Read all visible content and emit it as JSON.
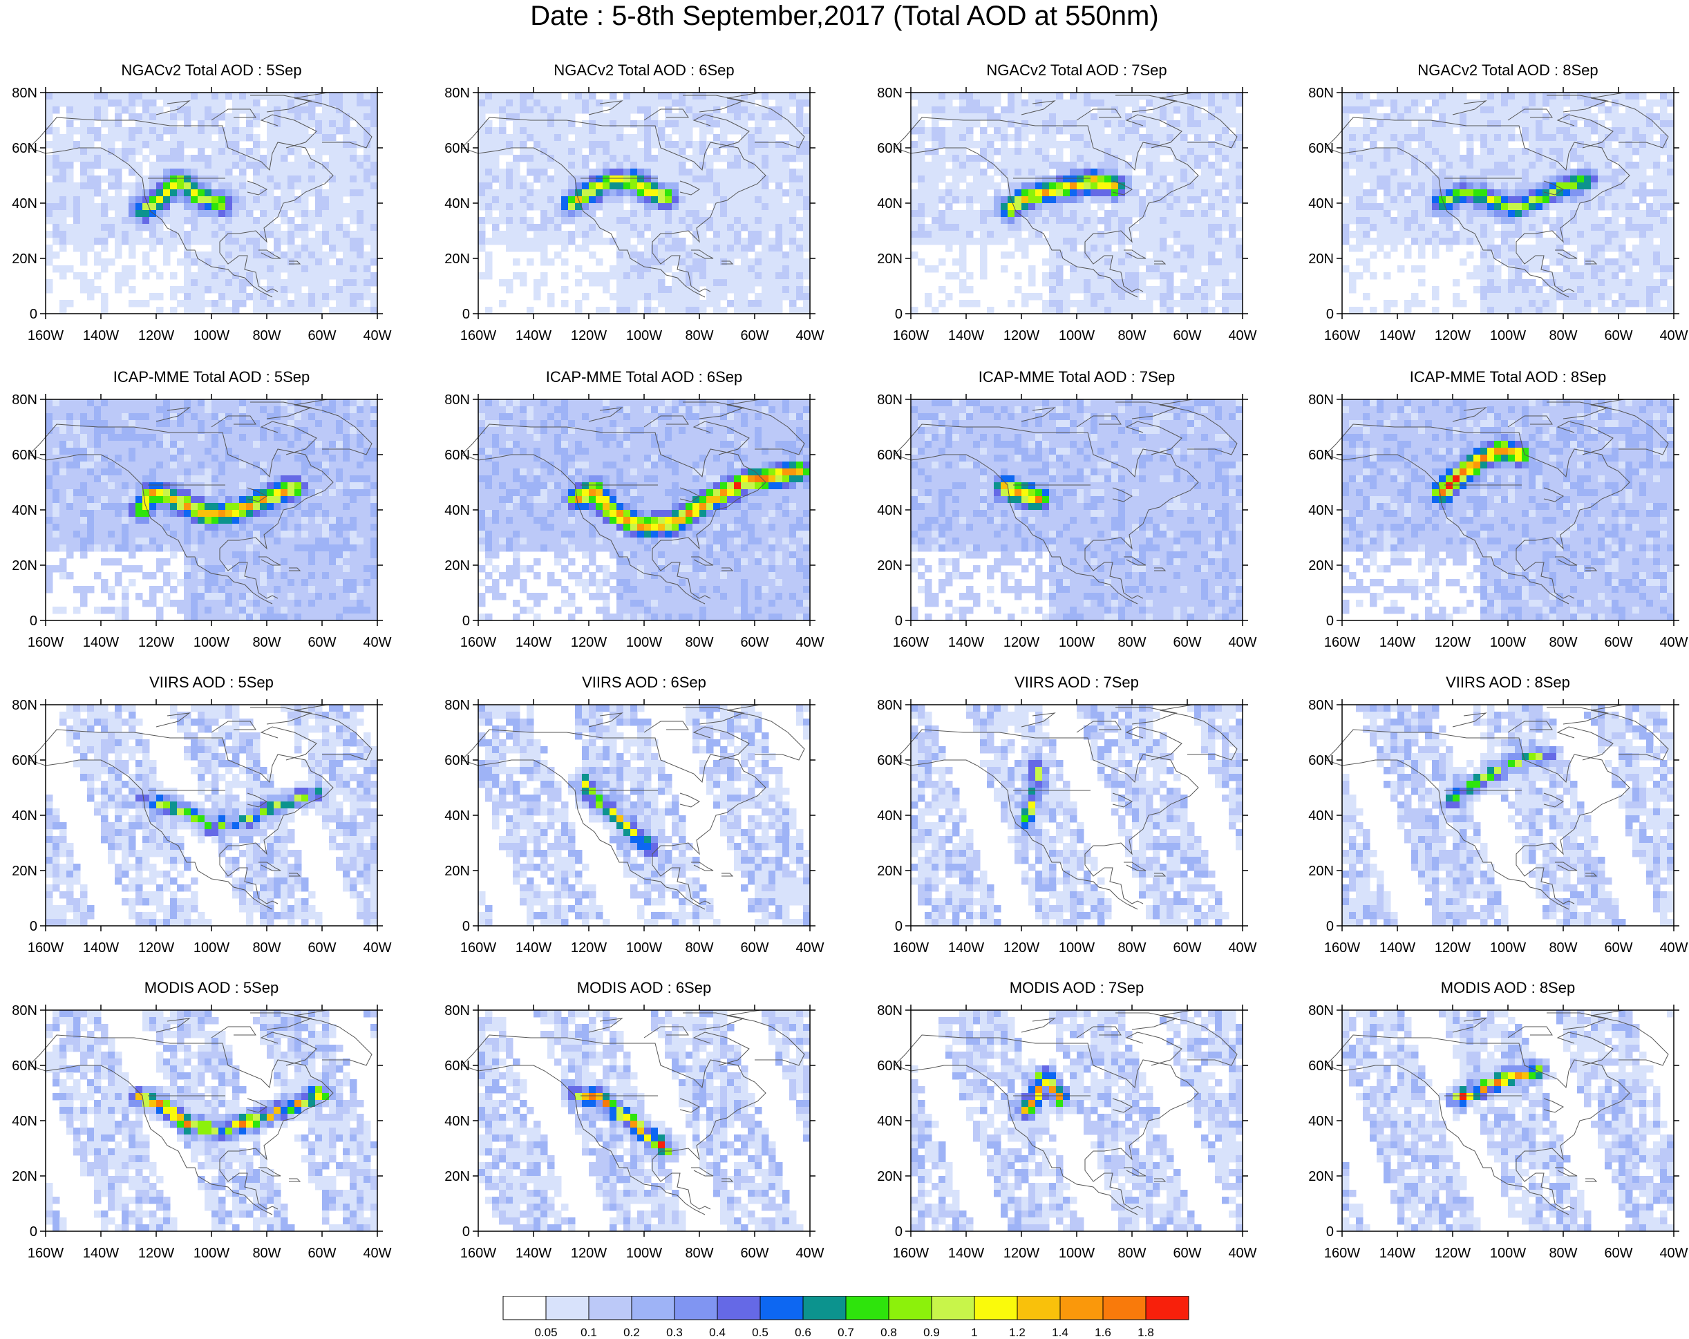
{
  "title": "Date : 5-8th September,2017 (Total AOD at 550nm)",
  "axes": {
    "lat_ticks": [
      "80N",
      "60N",
      "40N",
      "20N",
      "0"
    ],
    "lon_ticks": [
      "160W",
      "140W",
      "120W",
      "100W",
      "80W",
      "60W",
      "40W"
    ],
    "lat_range": [
      0,
      80
    ],
    "lon_range": [
      -160,
      -40
    ]
  },
  "panels": [
    {
      "title": "NGACv2 Total AOD : 5Sep",
      "source": "NGACv2",
      "date": "5Sep",
      "background_level": 1,
      "plumes": [
        [
          [
            -125,
            37
          ],
          [
            -118,
            42
          ],
          [
            -112,
            48
          ],
          [
            -104,
            42
          ],
          [
            -96,
            40
          ]
        ]
      ],
      "plume_peak": 11
    },
    {
      "title": "NGACv2 Total AOD : 6Sep",
      "source": "NGACv2",
      "date": "6Sep",
      "background_level": 1,
      "plumes": [
        [
          [
            -126,
            40
          ],
          [
            -120,
            44
          ],
          [
            -112,
            48
          ],
          [
            -104,
            48
          ],
          [
            -98,
            44
          ],
          [
            -92,
            42
          ]
        ]
      ],
      "plume_peak": 12
    },
    {
      "title": "NGACv2 Total AOD : 7Sep",
      "source": "NGACv2",
      "date": "7Sep",
      "background_level": 1,
      "plumes": [
        [
          [
            -124,
            38
          ],
          [
            -118,
            42
          ],
          [
            -110,
            44
          ],
          [
            -102,
            46
          ],
          [
            -94,
            48
          ],
          [
            -86,
            46
          ]
        ]
      ],
      "plume_peak": 13
    },
    {
      "title": "NGACv2 Total AOD : 8Sep",
      "source": "NGACv2",
      "date": "8Sep",
      "background_level": 1,
      "plumes": [
        [
          [
            -124,
            40
          ],
          [
            -116,
            44
          ],
          [
            -108,
            42
          ],
          [
            -98,
            38
          ],
          [
            -88,
            42
          ],
          [
            -80,
            46
          ],
          [
            -72,
            48
          ]
        ]
      ],
      "plume_peak": 10
    },
    {
      "title": "ICAP-MME Total AOD : 5Sep",
      "source": "ICAP-MME",
      "date": "5Sep",
      "background_level": 2,
      "plumes": [
        [
          [
            -125,
            40
          ],
          [
            -122,
            46
          ],
          [
            -116,
            45
          ],
          [
            -110,
            42
          ],
          [
            -100,
            38
          ],
          [
            -90,
            40
          ],
          [
            -80,
            44
          ],
          [
            -70,
            48
          ]
        ]
      ],
      "plume_peak": 13
    },
    {
      "title": "ICAP-MME Total AOD : 6Sep",
      "source": "ICAP-MME",
      "date": "6Sep",
      "background_level": 2,
      "plumes": [
        [
          [
            -124,
            44
          ],
          [
            -118,
            47
          ],
          [
            -112,
            40
          ],
          [
            -102,
            34
          ],
          [
            -90,
            35
          ],
          [
            -78,
            42
          ],
          [
            -64,
            50
          ],
          [
            -44,
            54
          ]
        ]
      ],
      "plume_peak": 14
    },
    {
      "title": "ICAP-MME Total AOD : 7Sep",
      "source": "ICAP-MME",
      "date": "7Sep",
      "background_level": 2,
      "plumes": [
        [
          [
            -126,
            48
          ],
          [
            -120,
            46
          ],
          [
            -114,
            44
          ]
        ]
      ],
      "plume_peak": 14
    },
    {
      "title": "ICAP-MME Total AOD : 8Sep",
      "source": "ICAP-MME",
      "date": "8Sep",
      "background_level": 2,
      "plumes": [
        [
          [
            -124,
            46
          ],
          [
            -118,
            52
          ],
          [
            -110,
            58
          ],
          [
            -102,
            62
          ],
          [
            -96,
            60
          ]
        ]
      ],
      "plume_peak": 14
    },
    {
      "title": "VIIRS AOD : 5Sep",
      "source": "VIIRS",
      "date": "5Sep",
      "background_level": 1,
      "plumes": [
        [
          [
            -124,
            46
          ],
          [
            -112,
            42
          ],
          [
            -100,
            36
          ],
          [
            -88,
            38
          ],
          [
            -76,
            44
          ],
          [
            -62,
            48
          ]
        ]
      ],
      "plume_peak": 10
    },
    {
      "title": "VIIRS AOD : 6Sep",
      "source": "VIIRS",
      "date": "6Sep",
      "background_level": 1,
      "plumes": [
        [
          [
            -122,
            52
          ],
          [
            -118,
            46
          ],
          [
            -112,
            42
          ],
          [
            -104,
            34
          ],
          [
            -98,
            28
          ]
        ]
      ],
      "plume_peak": 11
    },
    {
      "title": "VIIRS AOD : 7Sep",
      "source": "VIIRS",
      "date": "7Sep",
      "background_level": 1,
      "plumes": [
        [
          [
            -114,
            58
          ],
          [
            -114,
            50
          ],
          [
            -116,
            44
          ],
          [
            -118,
            38
          ]
        ]
      ],
      "plume_peak": 11
    },
    {
      "title": "VIIRS AOD : 8Sep",
      "source": "VIIRS",
      "date": "8Sep",
      "background_level": 1,
      "plumes": [
        [
          [
            -120,
            46
          ],
          [
            -112,
            52
          ],
          [
            -104,
            56
          ],
          [
            -94,
            60
          ],
          [
            -86,
            62
          ]
        ]
      ],
      "plume_peak": 10
    },
    {
      "title": "MODIS AOD : 5Sep",
      "source": "MODIS",
      "date": "5Sep",
      "background_level": 1,
      "plumes": [
        [
          [
            -126,
            48
          ],
          [
            -118,
            46
          ],
          [
            -108,
            38
          ],
          [
            -96,
            37
          ],
          [
            -84,
            40
          ],
          [
            -70,
            46
          ],
          [
            -60,
            50
          ]
        ]
      ],
      "plume_peak": 14
    },
    {
      "title": "MODIS AOD : 6Sep",
      "source": "MODIS",
      "date": "6Sep",
      "background_level": 1,
      "plumes": [
        [
          [
            -124,
            50
          ],
          [
            -116,
            48
          ],
          [
            -108,
            42
          ],
          [
            -100,
            36
          ],
          [
            -92,
            30
          ]
        ]
      ],
      "plume_peak": 14
    },
    {
      "title": "MODIS AOD : 7Sep",
      "source": "MODIS",
      "date": "7Sep",
      "background_level": 1,
      "plumes": [
        [
          [
            -118,
            44
          ],
          [
            -114,
            50
          ],
          [
            -112,
            56
          ],
          [
            -106,
            48
          ]
        ]
      ],
      "plume_peak": 14
    },
    {
      "title": "MODIS AOD : 8Sep",
      "source": "MODIS",
      "date": "8Sep",
      "background_level": 1,
      "plumes": [
        [
          [
            -118,
            48
          ],
          [
            -108,
            52
          ],
          [
            -98,
            56
          ],
          [
            -90,
            58
          ]
        ]
      ],
      "plume_peak": 14
    }
  ],
  "colorbar": {
    "colors": [
      "#ffffff",
      "#d8e2fb",
      "#bcc9f8",
      "#9eb3f6",
      "#8095f2",
      "#6569e6",
      "#0d67f2",
      "#0c938e",
      "#2ee40c",
      "#8cf10b",
      "#c8f54a",
      "#fafa0b",
      "#f9c10b",
      "#fa980b",
      "#f97a0b",
      "#f8200b"
    ],
    "labels": [
      "0.05",
      "0.1",
      "0.2",
      "0.3",
      "0.4",
      "0.5",
      "0.6",
      "0.7",
      "0.8",
      "0.9",
      "1",
      "1.2",
      "1.4",
      "1.6",
      "1.8"
    ]
  }
}
